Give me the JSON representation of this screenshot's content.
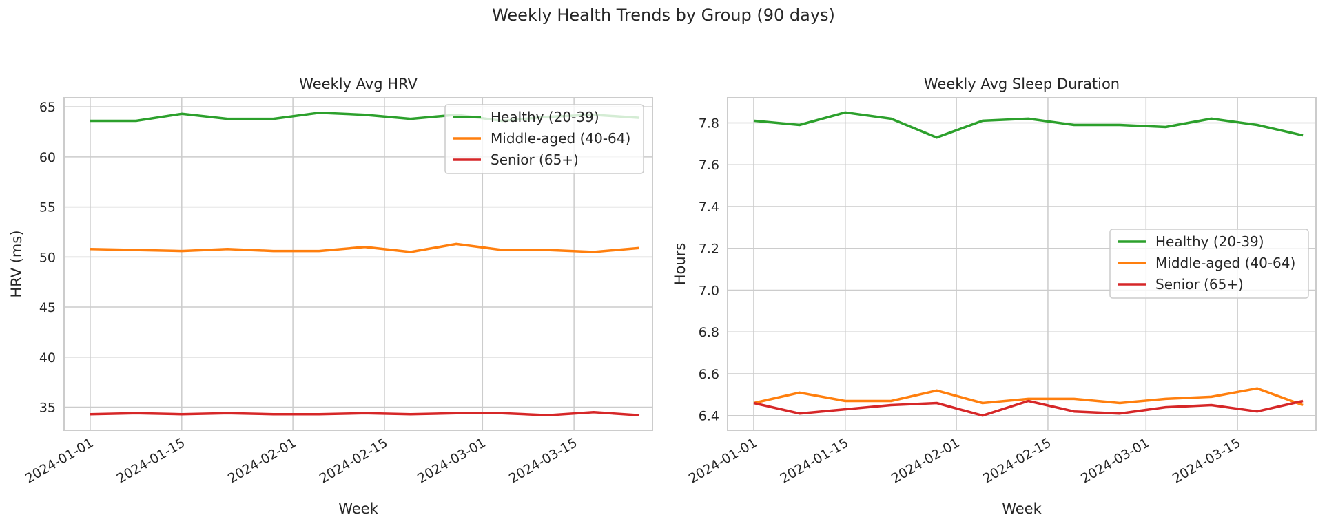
{
  "figure": {
    "title": "Weekly Health Trends by Group (90 days)"
  },
  "series_colors": {
    "Healthy (20-39)": "#2ca02c",
    "Middle-aged (40-64)": "#ff7f0e",
    "Senior (65+)": "#d62728"
  },
  "chart_data": [
    {
      "type": "line",
      "title": "Weekly Avg HRV",
      "xlabel": "Week",
      "ylabel": "HRV (ms)",
      "xlim": [
        "2023-12-28",
        "2024-03-27"
      ],
      "ylim": [
        32.7,
        65.9
      ],
      "xticks": [
        "2024-01-01",
        "2024-01-15",
        "2024-02-01",
        "2024-02-15",
        "2024-03-01",
        "2024-03-15"
      ],
      "yticks": [
        35,
        40,
        45,
        50,
        55,
        60,
        65
      ],
      "grid": true,
      "legend": "upper right",
      "x": [
        "2024-01-01",
        "2024-01-08",
        "2024-01-15",
        "2024-01-22",
        "2024-01-29",
        "2024-02-05",
        "2024-02-12",
        "2024-02-19",
        "2024-02-26",
        "2024-03-04",
        "2024-03-11",
        "2024-03-18",
        "2024-03-25"
      ],
      "series": [
        {
          "name": "Healthy (20-39)",
          "values": [
            63.6,
            63.6,
            64.3,
            63.8,
            63.8,
            64.4,
            64.2,
            63.8,
            64.2,
            63.6,
            64.0,
            64.2,
            63.9
          ]
        },
        {
          "name": "Middle-aged (40-64)",
          "values": [
            50.8,
            50.7,
            50.6,
            50.8,
            50.6,
            50.6,
            51.0,
            50.5,
            51.3,
            50.7,
            50.7,
            50.5,
            50.9
          ]
        },
        {
          "name": "Senior (65+)",
          "values": [
            34.3,
            34.4,
            34.3,
            34.4,
            34.3,
            34.3,
            34.4,
            34.3,
            34.4,
            34.4,
            34.2,
            34.5,
            34.2
          ]
        }
      ]
    },
    {
      "type": "line",
      "title": "Weekly Avg Sleep Duration",
      "xlabel": "Week",
      "ylabel": "Hours",
      "xlim": [
        "2023-12-28",
        "2024-03-27"
      ],
      "ylim": [
        6.33,
        7.92
      ],
      "xticks": [
        "2024-01-01",
        "2024-01-15",
        "2024-02-01",
        "2024-02-15",
        "2024-03-01",
        "2024-03-15"
      ],
      "yticks": [
        "6.4",
        "6.6",
        "6.8",
        "7.0",
        "7.2",
        "7.4",
        "7.6",
        "7.8"
      ],
      "grid": true,
      "legend": "center right",
      "x": [
        "2024-01-01",
        "2024-01-08",
        "2024-01-15",
        "2024-01-22",
        "2024-01-29",
        "2024-02-05",
        "2024-02-12",
        "2024-02-19",
        "2024-02-26",
        "2024-03-04",
        "2024-03-11",
        "2024-03-18",
        "2024-03-25"
      ],
      "series": [
        {
          "name": "Healthy (20-39)",
          "values": [
            7.81,
            7.79,
            7.85,
            7.82,
            7.73,
            7.81,
            7.82,
            7.79,
            7.79,
            7.78,
            7.82,
            7.79,
            7.74
          ]
        },
        {
          "name": "Middle-aged (40-64)",
          "values": [
            6.46,
            6.51,
            6.47,
            6.47,
            6.52,
            6.46,
            6.48,
            6.48,
            6.46,
            6.48,
            6.49,
            6.53,
            6.45
          ]
        },
        {
          "name": "Senior (65+)",
          "values": [
            6.46,
            6.41,
            6.43,
            6.45,
            6.46,
            6.4,
            6.47,
            6.42,
            6.41,
            6.44,
            6.45,
            6.42,
            6.47
          ]
        }
      ]
    }
  ]
}
